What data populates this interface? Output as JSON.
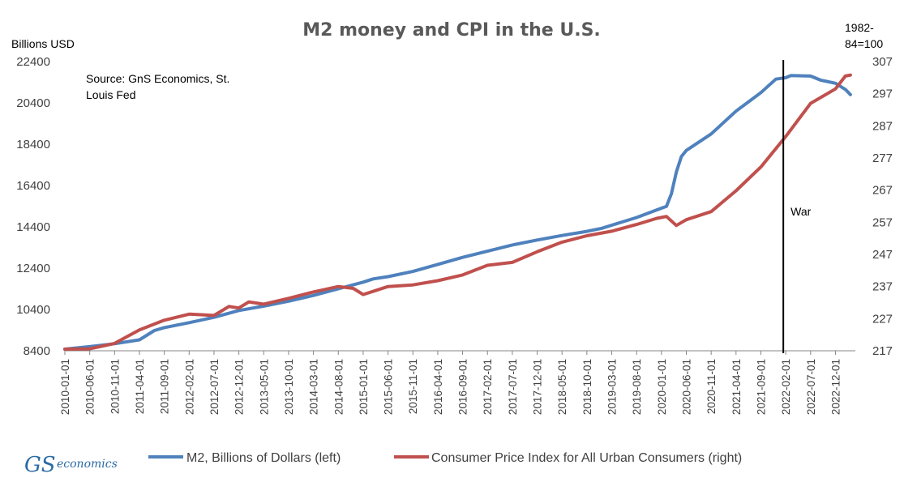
{
  "chart_data": {
    "type": "line",
    "title": "M2 money and CPI in the U.S.",
    "ylabel_left": "Billions USD",
    "ylabel_right_line1": "1982-",
    "ylabel_right_line2": "84=100",
    "source_line1": "Source: GnS Economics, St.",
    "source_line2": "Louis Fed",
    "annotation": "War",
    "annotation_date": "2022-02-01",
    "left_axis": {
      "min": 8400,
      "max": 22400,
      "ticks": [
        8400,
        10400,
        12400,
        14400,
        16400,
        18400,
        20400,
        22400
      ]
    },
    "right_axis": {
      "min": 217,
      "max": 307,
      "ticks": [
        217,
        227,
        237,
        247,
        257,
        267,
        277,
        287,
        297,
        307
      ]
    },
    "x_ticks": [
      "2010-01-01",
      "2010-06-01",
      "2010-11-01",
      "2011-04-01",
      "2011-09-01",
      "2012-02-01",
      "2012-07-01",
      "2012-12-01",
      "2013-05-01",
      "2013-10-01",
      "2014-03-01",
      "2014-08-01",
      "2015-01-01",
      "2015-06-01",
      "2015-11-01",
      "2016-04-01",
      "2016-09-01",
      "2017-02-01",
      "2017-07-01",
      "2017-12-01",
      "2018-05-01",
      "2018-10-01",
      "2019-03-01",
      "2019-08-01",
      "2020-01-01",
      "2020-06-01",
      "2020-11-01",
      "2021-04-01",
      "2021-09-01",
      "2022-02-01",
      "2022-07-01",
      "2022-12-01"
    ],
    "x_range": [
      "2010-01-01",
      "2023-04-01"
    ],
    "series": [
      {
        "name": "M2, Billions of Dollars (left)",
        "axis": "left",
        "color": "#4f81bd",
        "points": [
          [
            "2010-01-01",
            8480
          ],
          [
            "2010-06-01",
            8600
          ],
          [
            "2010-11-01",
            8740
          ],
          [
            "2011-04-01",
            8930
          ],
          [
            "2011-07-01",
            9380
          ],
          [
            "2011-09-01",
            9520
          ],
          [
            "2012-02-01",
            9760
          ],
          [
            "2012-07-01",
            10020
          ],
          [
            "2012-12-01",
            10350
          ],
          [
            "2013-05-01",
            10560
          ],
          [
            "2013-10-01",
            10800
          ],
          [
            "2014-03-01",
            11080
          ],
          [
            "2014-08-01",
            11400
          ],
          [
            "2015-01-01",
            11720
          ],
          [
            "2015-03-01",
            11880
          ],
          [
            "2015-06-01",
            11990
          ],
          [
            "2015-11-01",
            12240
          ],
          [
            "2016-04-01",
            12580
          ],
          [
            "2016-09-01",
            12920
          ],
          [
            "2017-02-01",
            13220
          ],
          [
            "2017-07-01",
            13520
          ],
          [
            "2017-12-01",
            13760
          ],
          [
            "2018-05-01",
            13980
          ],
          [
            "2018-10-01",
            14180
          ],
          [
            "2019-01-01",
            14330
          ],
          [
            "2019-03-01",
            14480
          ],
          [
            "2019-08-01",
            14850
          ],
          [
            "2020-01-01",
            15300
          ],
          [
            "2020-02-01",
            15390
          ],
          [
            "2020-03-01",
            16000
          ],
          [
            "2020-04-01",
            17050
          ],
          [
            "2020-05-01",
            17800
          ],
          [
            "2020-06-01",
            18100
          ],
          [
            "2020-11-01",
            18900
          ],
          [
            "2021-04-01",
            20000
          ],
          [
            "2021-09-01",
            20900
          ],
          [
            "2021-12-01",
            21550
          ],
          [
            "2022-02-01",
            21620
          ],
          [
            "2022-03-01",
            21720
          ],
          [
            "2022-07-01",
            21700
          ],
          [
            "2022-09-01",
            21500
          ],
          [
            "2022-12-01",
            21350
          ],
          [
            "2023-02-01",
            21050
          ],
          [
            "2023-03-01",
            20800
          ]
        ]
      },
      {
        "name": "Consumer Price Index for All Urban Consumers (right)",
        "axis": "right",
        "color": "#c0504d",
        "points": [
          [
            "2010-01-01",
            217.5
          ],
          [
            "2010-06-01",
            217.6
          ],
          [
            "2010-11-01",
            219.3
          ],
          [
            "2011-04-01",
            223.5
          ],
          [
            "2011-09-01",
            226.5
          ],
          [
            "2012-02-01",
            228.4
          ],
          [
            "2012-07-01",
            228.0
          ],
          [
            "2012-10-01",
            230.8
          ],
          [
            "2012-12-01",
            230.3
          ],
          [
            "2013-02-01",
            232.2
          ],
          [
            "2013-05-01",
            231.5
          ],
          [
            "2013-10-01",
            233.3
          ],
          [
            "2014-03-01",
            235.3
          ],
          [
            "2014-08-01",
            237.0
          ],
          [
            "2014-11-01",
            236.4
          ],
          [
            "2015-01-01",
            234.5
          ],
          [
            "2015-06-01",
            237.0
          ],
          [
            "2015-11-01",
            237.5
          ],
          [
            "2016-04-01",
            238.8
          ],
          [
            "2016-09-01",
            240.6
          ],
          [
            "2017-02-01",
            243.6
          ],
          [
            "2017-07-01",
            244.5
          ],
          [
            "2017-12-01",
            247.8
          ],
          [
            "2018-05-01",
            250.8
          ],
          [
            "2018-10-01",
            252.8
          ],
          [
            "2019-03-01",
            254.2
          ],
          [
            "2019-08-01",
            256.3
          ],
          [
            "2019-12-01",
            258.2
          ],
          [
            "2020-02-01",
            258.8
          ],
          [
            "2020-04-01",
            256.0
          ],
          [
            "2020-06-01",
            257.8
          ],
          [
            "2020-11-01",
            260.3
          ],
          [
            "2021-04-01",
            266.8
          ],
          [
            "2021-09-01",
            274.2
          ],
          [
            "2022-02-01",
            283.7
          ],
          [
            "2022-07-01",
            294.0
          ],
          [
            "2022-12-01",
            298.5
          ],
          [
            "2023-02-01",
            302.5
          ],
          [
            "2023-03-01",
            302.8
          ]
        ]
      }
    ]
  },
  "legend": {
    "m2_label": "M2, Billions of Dollars (left)",
    "cpi_label": "Consumer Price Index for All Urban Consumers (right)"
  },
  "logo": {
    "gs": "GS",
    "economics": "economics"
  }
}
